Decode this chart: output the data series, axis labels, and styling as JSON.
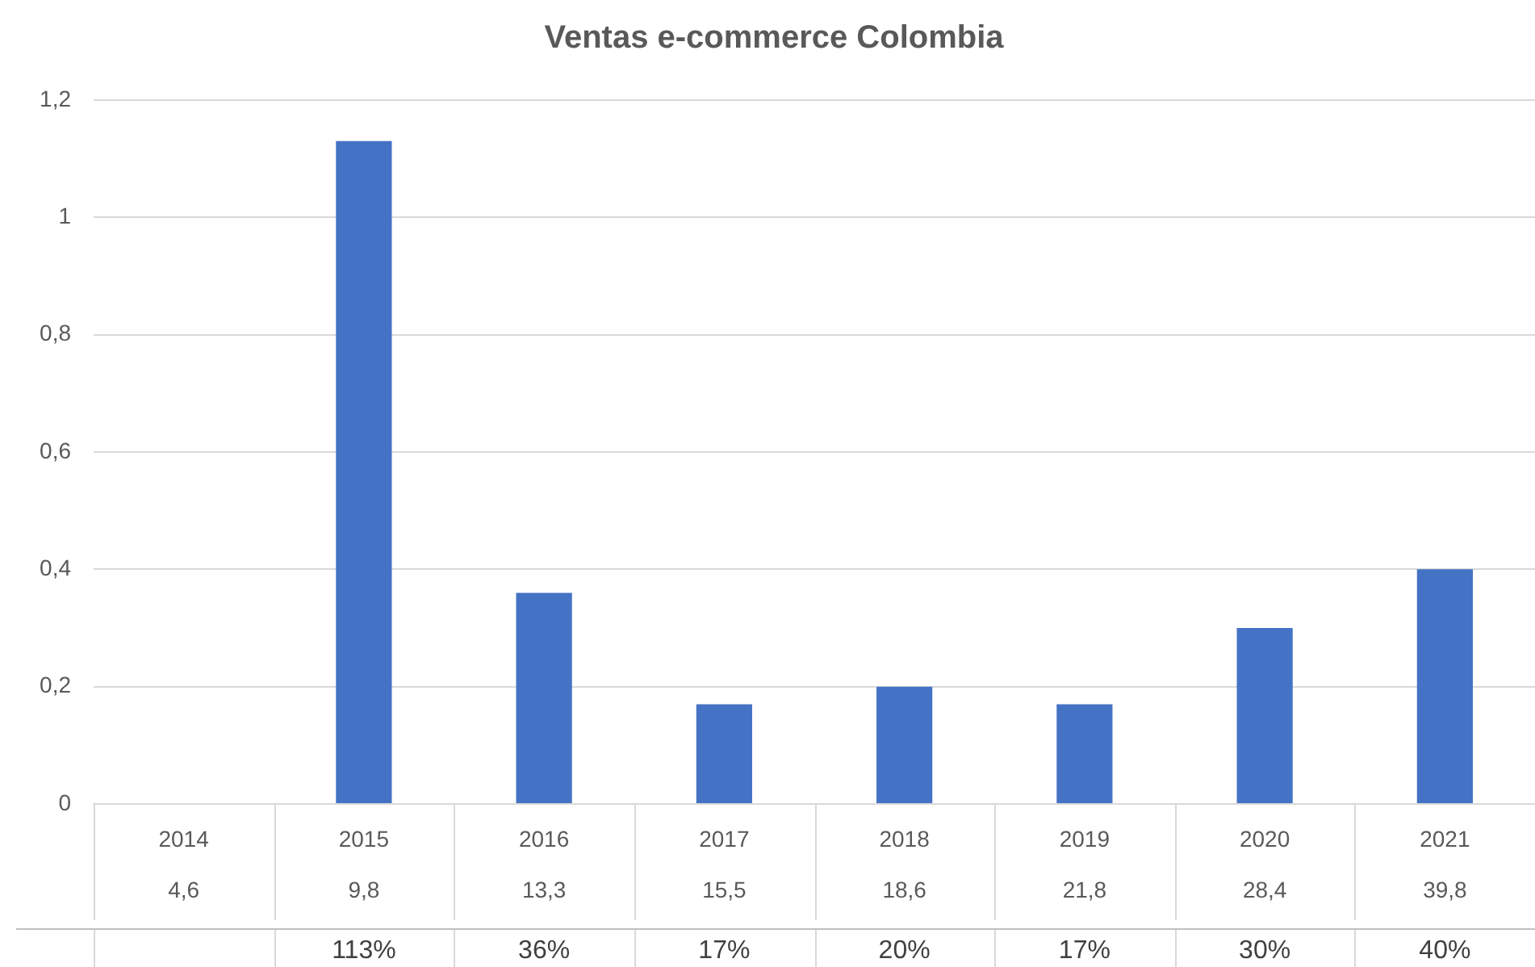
{
  "chart_data": {
    "type": "bar",
    "title": "Ventas e-commerce Colombia",
    "categories": [
      "2014",
      "2015",
      "2016",
      "2017",
      "2018",
      "2019",
      "2020",
      "2021"
    ],
    "values": [
      null,
      1.13,
      0.36,
      0.17,
      0.2,
      0.17,
      0.3,
      0.4
    ],
    "value_labels": [
      null,
      "113%",
      "36%",
      "17%",
      "20%",
      "17%",
      "30%",
      "40%"
    ],
    "color": "#4472c4",
    "ylim": [
      0,
      1.2
    ],
    "yticks": [
      0,
      {
        "value": 0.2,
        "label": "0,2"
      },
      {
        "value": 0.4,
        "label": "0,4"
      },
      {
        "value": 0.6,
        "label": "0,6"
      },
      {
        "value": 0.8,
        "label": "0,8"
      },
      1,
      {
        "value": 1.2,
        "label": "1,2"
      }
    ],
    "grid": "y",
    "annotations": [
      "4,6",
      "9,8",
      "13,3",
      "15,5",
      "18,6",
      "21,8",
      "28,4",
      "39,8"
    ]
  }
}
